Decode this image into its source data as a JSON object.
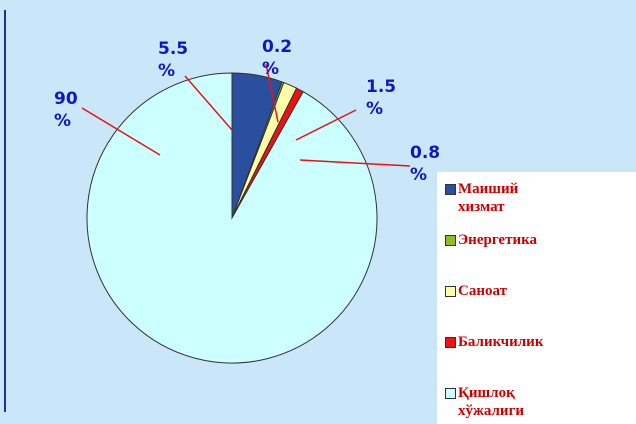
{
  "chart_data": {
    "type": "pie",
    "categories": [
      "Маиший хизмат",
      "Энергетика",
      "Саноат",
      "Баликчилик",
      "Қишлоқ хўжалиги"
    ],
    "values": [
      5.5,
      0.2,
      1.5,
      0.8,
      90
    ],
    "value_labels": [
      "5.5 %",
      "0.2 %",
      "1.5 %",
      "0.8 %",
      "90 %"
    ],
    "colors": [
      "#2a4f9f",
      "#8cbf26",
      "#ffffa8",
      "#ee1111",
      "#ccffff"
    ],
    "legend": "right"
  }
}
